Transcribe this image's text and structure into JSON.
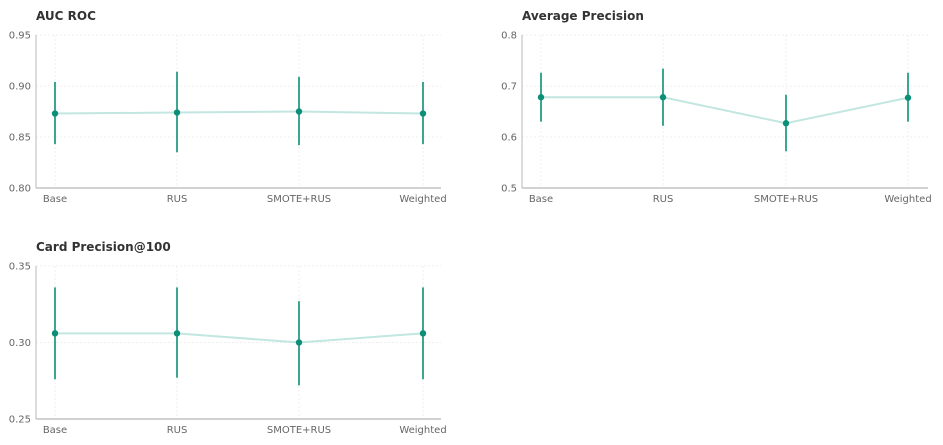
{
  "chart_data": [
    {
      "type": "line",
      "title": "AUC ROC",
      "categories": [
        "Base",
        "RUS",
        "SMOTE+RUS",
        "Weighted"
      ],
      "values": [
        0.873,
        0.874,
        0.875,
        0.873
      ],
      "error_low": [
        0.843,
        0.835,
        0.842,
        0.843
      ],
      "error_high": [
        0.904,
        0.914,
        0.909,
        0.904
      ],
      "ylim": [
        0.8,
        0.95
      ],
      "yticks": [
        "0.80",
        "0.85",
        "0.90",
        "0.95"
      ],
      "grid": true
    },
    {
      "type": "line",
      "title": "Average Precision",
      "categories": [
        "Base",
        "RUS",
        "SMOTE+RUS",
        "Weighted"
      ],
      "values": [
        0.678,
        0.678,
        0.627,
        0.677
      ],
      "error_low": [
        0.63,
        0.622,
        0.572,
        0.63
      ],
      "error_high": [
        0.726,
        0.734,
        0.683,
        0.726
      ],
      "ylim": [
        0.5,
        0.8
      ],
      "yticks": [
        "0.5",
        "0.6",
        "0.7",
        "0.8"
      ],
      "grid": true
    },
    {
      "type": "line",
      "title": "Card Precision@100",
      "categories": [
        "Base",
        "RUS",
        "SMOTE+RUS",
        "Weighted"
      ],
      "values": [
        0.306,
        0.306,
        0.3,
        0.306
      ],
      "error_low": [
        0.276,
        0.277,
        0.272,
        0.276
      ],
      "error_high": [
        0.336,
        0.336,
        0.327,
        0.336
      ],
      "ylim": [
        0.25,
        0.35
      ],
      "yticks": [
        "0.25",
        "0.30",
        "0.35"
      ],
      "grid": true
    }
  ],
  "colors": {
    "marker": "#0b8f78",
    "line": "#c2e6e0",
    "axis": "#b8b8b8",
    "grid": "#efefef"
  }
}
